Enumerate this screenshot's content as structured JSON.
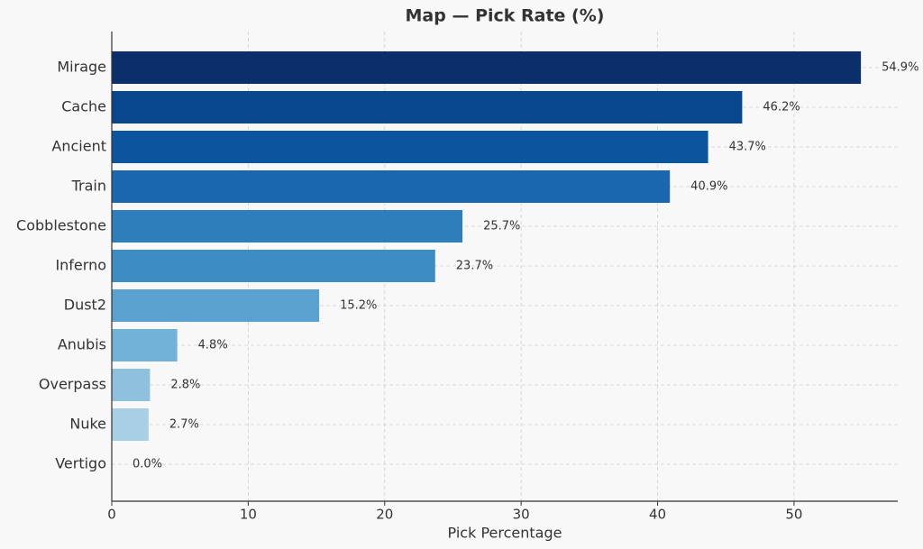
{
  "chart_data": {
    "type": "bar",
    "orientation": "horizontal",
    "title": "Map — Pick Rate (%)",
    "x_label": "Pick Percentage",
    "categories": [
      "Mirage",
      "Cache",
      "Ancient",
      "Train",
      "Cobblestone",
      "Inferno",
      "Dust2",
      "Anubis",
      "Overpass",
      "Nuke",
      "Vertigo"
    ],
    "values": [
      54.9,
      46.2,
      43.7,
      40.9,
      25.7,
      23.7,
      15.2,
      4.8,
      2.8,
      2.7,
      0.0
    ],
    "value_labels": [
      "54.9%",
      "46.2%",
      "43.7%",
      "40.9%",
      "25.7%",
      "23.7%",
      "15.2%",
      "4.8%",
      "2.8%",
      "2.7%",
      "0.0%"
    ],
    "colors": [
      "#0a2f6b",
      "#08468e",
      "#0b559f",
      "#1a67b0",
      "#2e7ebc",
      "#3d8dc4",
      "#5aa1cf",
      "#72b2d8",
      "#8fc1de",
      "#a9cfe5",
      "#c6dbef"
    ],
    "xlim": [
      0,
      57.6
    ],
    "xticks": [
      0,
      10,
      20,
      30,
      40,
      50
    ],
    "grid": true
  }
}
